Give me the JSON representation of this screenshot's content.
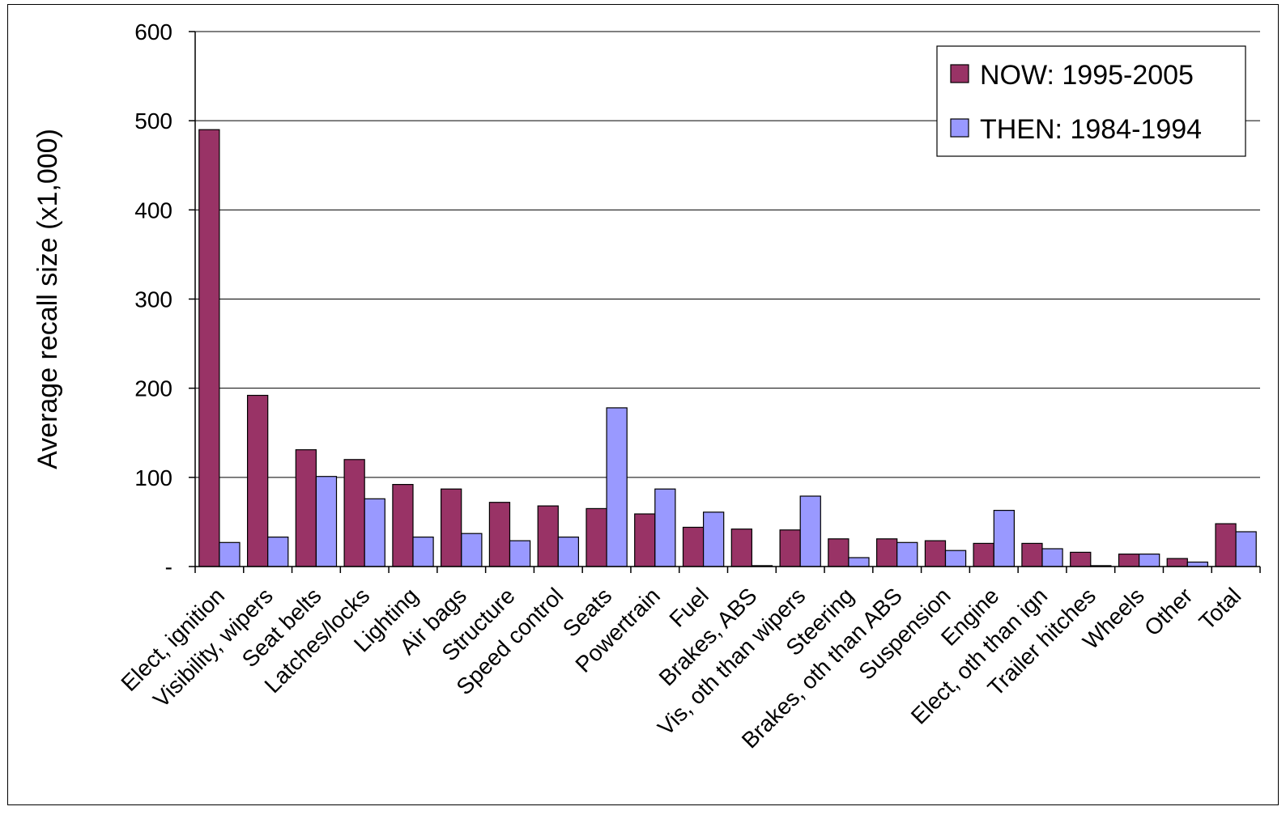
{
  "chart_data": {
    "type": "bar",
    "categories": [
      "Elect, ignition",
      "Visibility, wipers",
      "Seat belts",
      "Latches/locks",
      "Lighting",
      "Air bags",
      "Structure",
      "Speed control",
      "Seats",
      "Powertrain",
      "Fuel",
      "Brakes, ABS",
      "Vis, oth than wipers",
      "Steering",
      "Brakes, oth than ABS",
      "Suspension",
      "Engine",
      "Elect, oth than ign",
      "Trailer hitches",
      "Wheels",
      "Other",
      "Total"
    ],
    "series": [
      {
        "name": "NOW: 1995-2005",
        "color": "#993366",
        "values": [
          490,
          192,
          131,
          120,
          92,
          87,
          72,
          68,
          65,
          59,
          44,
          42,
          41,
          31,
          31,
          29,
          26,
          26,
          16,
          14,
          9,
          48
        ]
      },
      {
        "name": "THEN: 1984-1994",
        "color": "#9999FF",
        "values": [
          27,
          33,
          101,
          76,
          33,
          37,
          29,
          33,
          178,
          87,
          61,
          1,
          79,
          10,
          27,
          18,
          63,
          20,
          1,
          14,
          5,
          39
        ]
      }
    ],
    "ylabel": "Average recall size (x1,000)",
    "xlabel": "",
    "ylim": [
      0,
      600
    ],
    "yticks": [
      0,
      100,
      200,
      300,
      400,
      500,
      600
    ],
    "ytick_labels": [
      "-",
      "100",
      "200",
      "300",
      "400",
      "500",
      "600"
    ],
    "grid": true,
    "legend_position": "top-right"
  }
}
